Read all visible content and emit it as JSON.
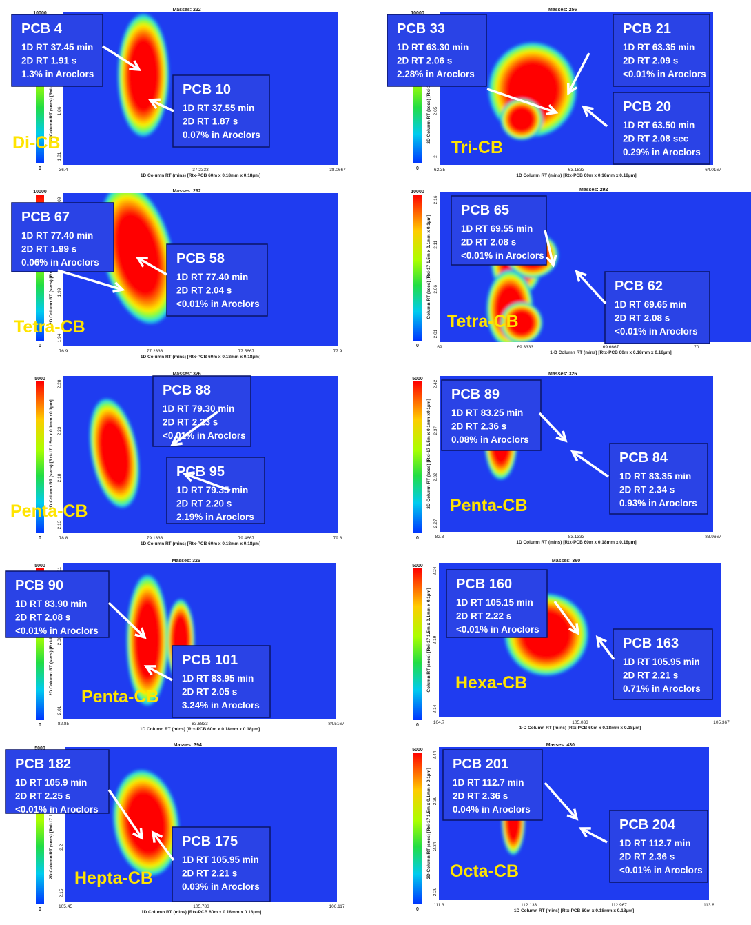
{
  "colors": {
    "background": "#1f3cf0",
    "frame": "#2a43e6",
    "peak": "#ff0000",
    "label": "#ffe400",
    "annotation_text": "#ffffff",
    "annotation_border": "#0a1466"
  },
  "chart_data": [
    {
      "type": "heatmap",
      "masses": "Masses: 222",
      "class_label": "Di-CB",
      "scale_max": "10000",
      "scale_min": "0",
      "xlabel": "1D Column RT (mins) [Rtx-PCB 60m x 0.18mm x 0.18µm]",
      "ylabel": "2D Column RT (secs) [Rxi-17 1.5m x 0.1mm x0.1µm]",
      "xticks": [
        "36.4",
        "37.2333",
        "38.0667"
      ],
      "yticks": [
        "1.96",
        "1.91",
        "1.86",
        "1.81"
      ],
      "annotations": [
        {
          "name": "PCB 4",
          "lines": [
            "1D RT 37.45 min",
            "2D RT 1.91 s",
            "1.3% in Aroclors"
          ]
        },
        {
          "name": "PCB 10",
          "lines": [
            "1D RT 37.55 min",
            "2D RT 1.87 s",
            "0.07% in Aroclors"
          ]
        }
      ]
    },
    {
      "type": "heatmap",
      "masses": "Masses: 256",
      "class_label": "Tri-CB",
      "scale_max": "10000",
      "scale_min": "0",
      "xlabel": "1D Column RT (mins) [Rtx-PCB 60m x 0.18mm x 0.18µm]",
      "ylabel": "2D Column RT (secs) [Rxi-17 1.5m x 0.1mm x 0.1µm]",
      "xticks": [
        "62.35",
        "63.1833",
        "64.0167"
      ],
      "yticks": [
        "2.15",
        "2.1",
        "2.05",
        "2"
      ],
      "annotations": [
        {
          "name": "PCB 33",
          "lines": [
            "1D RT 63.30 min",
            "2D RT 2.06 s",
            "2.28% in Aroclors"
          ]
        },
        {
          "name": "PCB 21",
          "lines": [
            "1D RT 63.35 min",
            "2D RT 2.09 s",
            "<0.01% in Aroclors"
          ]
        },
        {
          "name": "PCB 20",
          "lines": [
            "1D RT 63.50 min",
            "2D RT 2.08 sec",
            "0.29% in Aroclors"
          ]
        }
      ]
    },
    {
      "type": "heatmap",
      "masses": "Masses: 292",
      "class_label": "Tetra-CB",
      "scale_max": "10000",
      "scale_min": "0",
      "xlabel": "1D Column RT (mins) [Rtx-PCB 60m x 0.18mm x 0.18µm]",
      "ylabel": "2D Column RT (secs) [Rxi-17 1.5m x 0.1mm x0.1µm]",
      "xticks": [
        "76.9",
        "77.2333",
        "77.5667",
        "77.9"
      ],
      "yticks": [
        "2.09",
        "2.04",
        "1.99",
        "1.94"
      ],
      "annotations": [
        {
          "name": "PCB 67",
          "lines": [
            "1D RT 77.40 min",
            "2D RT 1.99 s",
            "0.06% in Aroclors"
          ]
        },
        {
          "name": "PCB 58",
          "lines": [
            "1D RT 77.40 min",
            "2D RT 2.04 s",
            "<0.01% in Aroclors"
          ]
        }
      ]
    },
    {
      "type": "heatmap",
      "masses": "Masses: 292",
      "class_label": "Tetra-CB",
      "scale_max": "10000",
      "scale_min": "0",
      "xlabel": "1-D Column RT (mins) [Rtx-PCB 60m x 0.18mm x 0.18µm]",
      "ylabel": "Column RT (secs) [Rxi-17 1.5m x 0.1mm x 0.1µm]",
      "xticks": [
        "69",
        "69.3333",
        "69.6667",
        "70",
        "70.333"
      ],
      "yticks": [
        "2.16",
        "2.11",
        "2.06",
        "2.01"
      ],
      "annotations": [
        {
          "name": "PCB 65",
          "lines": [
            "1D RT 69.55 min",
            "2D RT 2.08 s",
            "<0.01% in Aroclors"
          ]
        },
        {
          "name": "PCB 62",
          "lines": [
            "1D RT 69.65 min",
            "2D RT 2.08 s",
            "<0.01% in Aroclors"
          ]
        }
      ]
    },
    {
      "type": "heatmap",
      "masses": "Masses: 326",
      "class_label": "Penta-CB",
      "scale_max": "5000",
      "scale_min": "0",
      "xlabel": "1D Column RT (mins) [Rtx-PCB 60m x 0.18mm x 0.18µm]",
      "ylabel": "2D Column RT (secs) [Rxi-17 1.5m x 0.1mm x0.1µm]",
      "xticks": [
        "78.8",
        "79.1333",
        "79.4667",
        "79.8"
      ],
      "yticks": [
        "2.28",
        "2.23",
        "2.18",
        "2.13"
      ],
      "annotations": [
        {
          "name": "PCB 88",
          "lines": [
            "1D RT 79.30 min",
            "2D RT 2.23 s",
            "<0.01% in Aroclors"
          ]
        },
        {
          "name": "PCB 95",
          "lines": [
            "1D RT 79.35 min",
            "2D RT 2.20 s",
            "2.19% in Aroclors"
          ]
        }
      ]
    },
    {
      "type": "heatmap",
      "masses": "Masses: 326",
      "class_label": "Penta-CB",
      "scale_max": "5000",
      "scale_min": "0",
      "xlabel": "1D Column RT (mins) [Rtx-PCB 60m x 0.18mm x 0.18µm]",
      "ylabel": "2D Column RT (secs) [Rxi-17 1.5m x 0.1mm x0.1µm]",
      "xticks": [
        "82.3",
        "83.1333",
        "83.9667"
      ],
      "yticks": [
        "2.42",
        "2.37",
        "2.32",
        "2.27"
      ],
      "annotations": [
        {
          "name": "PCB 89",
          "lines": [
            "1D RT 83.25 min",
            "2D RT 2.36 s",
            "0.08% in Aroclors"
          ]
        },
        {
          "name": "PCB 84",
          "lines": [
            "1D RT 83.35 min",
            "2D RT 2.34 s",
            "0.93% in Aroclors"
          ]
        }
      ]
    },
    {
      "type": "heatmap",
      "masses": "Masses: 326",
      "class_label": "Penta-CB",
      "scale_max": "5000",
      "scale_min": "0",
      "xlabel": "1D Column RT (mins) [Rtx-PCB 60m x 0.18mm x 0.18µm]",
      "ylabel": "2D Column RT (secs) [Rxi-17 1.5m x 0.1mm x0.1µm]",
      "xticks": [
        "82.85",
        "83.6833",
        "84.5167"
      ],
      "yticks": [
        "2.11",
        "2.06",
        "2.01"
      ],
      "annotations": [
        {
          "name": "PCB 90",
          "lines": [
            "1D RT 83.90 min",
            "2D RT 2.08 s",
            "<0.01% in Aroclors"
          ]
        },
        {
          "name": "PCB 101",
          "lines": [
            "1D RT 83.95 min",
            "2D RT 2.05 s",
            "3.24% in Aroclors"
          ]
        }
      ]
    },
    {
      "type": "heatmap",
      "masses": "Masses: 360",
      "class_label": "Hexa-CB",
      "scale_max": "5000",
      "scale_min": "0",
      "xlabel": "1-D Column RT (mins) [Rtx-PCB 60m x 0.18mm x 0.18µm]",
      "ylabel": "Column RT (secs) [Rxi-17 1.5m x 0.1mm x 0.1µm]",
      "xticks": [
        "104.7",
        "105.033",
        "105.367"
      ],
      "yticks": [
        "2.24",
        "2.19",
        "2.14"
      ],
      "annotations": [
        {
          "name": "PCB 160",
          "lines": [
            "1D RT 105.15 min",
            "2D RT 2.22 s",
            "<0.01% in Aroclors"
          ]
        },
        {
          "name": "PCB 163",
          "lines": [
            "1D RT 105.95 min",
            "2D RT 2.21 s",
            "0.71% in Aroclors"
          ]
        }
      ]
    },
    {
      "type": "heatmap",
      "masses": "Masses: 394",
      "class_label": "Hepta-CB",
      "scale_max": "5000",
      "scale_min": "0",
      "xlabel": "1D Column RT (mins) [Rtx-PCB 60m x 0.18mm x 0.18µm]",
      "ylabel": "2D Column RT (secs) [Rxi-17 1.5m x 0.1mm x0.1µm]",
      "xticks": [
        "105.45",
        "105.783",
        "106.117"
      ],
      "yticks": [
        "2.3",
        "2.25",
        "2.2",
        "2.15"
      ],
      "annotations": [
        {
          "name": "PCB 182",
          "lines": [
            "1D RT 105.9 min",
            "2D RT 2.25 s",
            "<0.01% in Aroclors"
          ]
        },
        {
          "name": "PCB 175",
          "lines": [
            "1D RT 105.95 min",
            "2D RT 2.21 s",
            "0.03% in Aroclors"
          ]
        }
      ]
    },
    {
      "type": "heatmap",
      "masses": "Masses: 430",
      "class_label": "Octa-CB",
      "scale_max": "5000",
      "scale_min": "0",
      "xlabel": "1D Column RT (mins) [Rtx-PCB 60m x 0.18mm x 0.18µm]",
      "ylabel": "2D Column RT (secs) [Rxi-17 1.5m x 0.1mm x 0.1µm]",
      "xticks": [
        "111.3",
        "112.133",
        "112.967",
        "113.8"
      ],
      "yticks": [
        "2.44",
        "2.39",
        "2.34",
        "2.29"
      ],
      "annotations": [
        {
          "name": "PCB 201",
          "lines": [
            "1D RT 112.7 min",
            "2D RT 2.36 s",
            "0.04% in Aroclors"
          ]
        },
        {
          "name": "PCB 204",
          "lines": [
            "1D RT 112.7 min",
            "2D RT 2.36 s",
            "<0.01% in Aroclors"
          ]
        }
      ]
    }
  ]
}
